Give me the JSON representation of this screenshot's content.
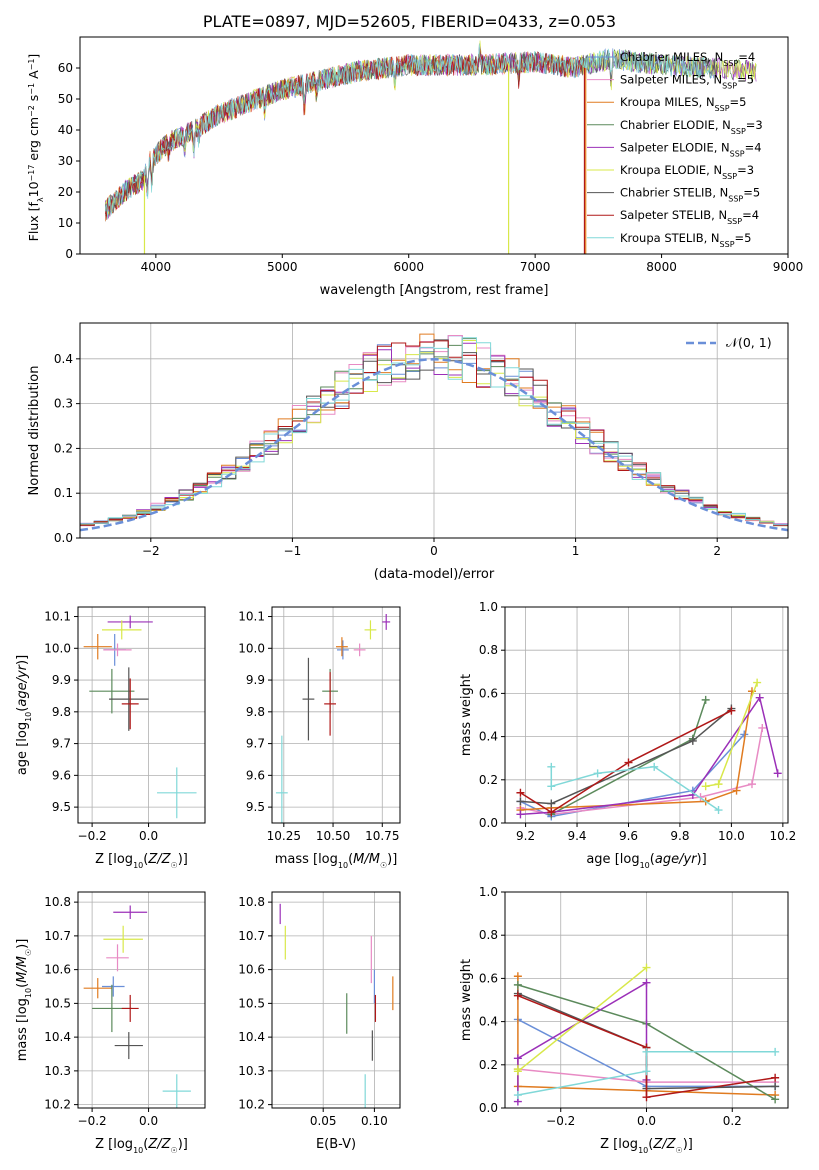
{
  "colors": {
    "chabrier_miles": "#6a8fd8",
    "salpeter_miles": "#e88bc4",
    "kroupa_miles": "#e07b20",
    "chabrier_elodie": "#5c8a5c",
    "salpeter_elodie": "#9b30b8",
    "kroupa_elodie": "#d8e84a",
    "chabrier_stelib": "#555555",
    "salpeter_stelib": "#b01818",
    "kroupa_stelib": "#80d8d8",
    "gauss": "#6a8fd8",
    "grid": "#b0b0b0"
  },
  "title": "PLATE=0897, MJD=52605, FIBERID=0433, z=0.053",
  "chart_data": [
    {
      "id": "spectrum",
      "type": "line",
      "xlabel": "wavelength [Angstrom, rest frame]",
      "ylabel": "Flux [f_λ10^-17 erg cm^-2 s^-1 A^-1]",
      "xlim": [
        3400,
        9000
      ],
      "ylim": [
        0,
        70
      ],
      "xticks": [
        "4000",
        "5000",
        "6000",
        "7000",
        "8000",
        "9000"
      ],
      "yticks": [
        "0",
        "10",
        "20",
        "30",
        "40",
        "50",
        "60"
      ],
      "legend": "top-right",
      "series": [
        {
          "name": "Chabrier MILES, N_SSP=4",
          "key": "chabrier_miles"
        },
        {
          "name": "Salpeter MILES, N_SSP=5",
          "key": "salpeter_miles"
        },
        {
          "name": "Kroupa MILES, N_SSP=5",
          "key": "kroupa_miles"
        },
        {
          "name": "Chabrier ELODIE, N_SSP=3",
          "key": "chabrier_elodie"
        },
        {
          "name": "Salpeter ELODIE, N_SSP=4",
          "key": "salpeter_elodie"
        },
        {
          "name": "Kroupa ELODIE, N_SSP=3",
          "key": "kroupa_elodie"
        },
        {
          "name": "Chabrier STELIB, N_SSP=5",
          "key": "chabrier_stelib"
        },
        {
          "name": "Salpeter STELIB, N_SSP=4",
          "key": "salpeter_stelib"
        },
        {
          "name": "Kroupa STELIB, N_SSP=5",
          "key": "kroupa_stelib"
        }
      ],
      "continuum": {
        "x": [
          3600,
          3750,
          3900,
          3950,
          4100,
          4300,
          4500,
          4800,
          5000,
          5300,
          5600,
          6000,
          6300,
          6600,
          7000,
          7300,
          7600,
          8000,
          8400,
          8700
        ],
        "y": [
          14,
          20,
          24,
          30,
          36,
          40,
          45,
          50,
          53,
          56,
          59,
          61,
          61,
          61,
          62,
          60,
          63,
          61,
          60,
          59
        ]
      },
      "drops": [
        {
          "key": "kroupa_elodie",
          "x_from": 3910,
          "x_to": 3940
        },
        {
          "key": "kroupa_elodie",
          "x_from": 6790,
          "x_to": 6830
        },
        {
          "key": "salpeter_stelib",
          "x_from": 7390,
          "x_to": 9000
        },
        {
          "key": "kroupa_miles",
          "x_from": 7400,
          "x_to": 9000
        },
        {
          "key": "salpeter_miles",
          "x_from": 7400,
          "x_to": 9000
        },
        {
          "key": "chabrier_miles",
          "x_from": 8450,
          "x_to": 8750
        },
        {
          "key": "chabrier_stelib",
          "x_from": 8450,
          "x_to": 8750
        },
        {
          "key": "kroupa_stelib",
          "x_from": 8400,
          "x_to": 8750
        }
      ]
    },
    {
      "id": "residuals",
      "type": "histogram",
      "xlabel": "(data-model)/error",
      "ylabel": "Normed distribution",
      "xlim": [
        -2.5,
        2.5
      ],
      "ylim": [
        0,
        0.48
      ],
      "xticks": [
        "−2",
        "−1",
        "0",
        "1",
        "2"
      ],
      "yticks": [
        "0.0",
        "0.1",
        "0.2",
        "0.3",
        "0.4"
      ],
      "legend": "top-right",
      "legend_label": "𝒩(0, 1)",
      "bin_width": 0.1
    },
    {
      "id": "age_vs_Z",
      "type": "scatter",
      "xlabel": "Z [log₁₀(Z/Z☉)]",
      "ylabel": "age [log₁₀(age/yr)]",
      "xlim": [
        -0.25,
        0.2
      ],
      "ylim": [
        9.45,
        10.13
      ],
      "xticks": [
        "−0.2",
        "0.0"
      ],
      "yticks": [
        "9.5",
        "9.6",
        "9.7",
        "9.8",
        "9.9",
        "10.0",
        "10.1"
      ],
      "points": [
        {
          "key": "chabrier_miles",
          "x": -0.12,
          "y": 9.995,
          "xerr": 0.04,
          "yerr": 0.05
        },
        {
          "key": "salpeter_miles",
          "x": -0.11,
          "y": 9.995,
          "xerr": 0.05,
          "yerr": 0.02
        },
        {
          "key": "kroupa_miles",
          "x": -0.18,
          "y": 10.005,
          "xerr": 0.05,
          "yerr": 0.04
        },
        {
          "key": "chabrier_elodie",
          "x": -0.13,
          "y": 9.865,
          "xerr": 0.08,
          "yerr": 0.07
        },
        {
          "key": "salpeter_elodie",
          "x": -0.065,
          "y": 10.083,
          "xerr": 0.08,
          "yerr": 0.02
        },
        {
          "key": "kroupa_elodie",
          "x": -0.095,
          "y": 10.058,
          "xerr": 0.07,
          "yerr": 0.03
        },
        {
          "key": "chabrier_stelib",
          "x": -0.07,
          "y": 9.84,
          "xerr": 0.07,
          "yerr": 0.1
        },
        {
          "key": "salpeter_stelib",
          "x": -0.065,
          "y": 9.825,
          "xerr": 0.03,
          "yerr": 0.08
        },
        {
          "key": "kroupa_stelib",
          "x": 0.1,
          "y": 9.545,
          "xerr": 0.07,
          "yerr": 0.08
        }
      ]
    },
    {
      "id": "age_vs_mass",
      "type": "scatter",
      "xlabel": "mass [log₁₀(M/M☉)]",
      "ylabel": "",
      "xlim": [
        10.19,
        10.84
      ],
      "ylim": [
        9.45,
        10.13
      ],
      "xticks": [
        "10.25",
        "10.50",
        "10.75"
      ],
      "yticks": [
        "9.5",
        "9.6",
        "9.7",
        "9.8",
        "9.9",
        "10.0",
        "10.1"
      ],
      "points": [
        {
          "key": "chabrier_miles",
          "x": 10.55,
          "y": 9.995,
          "xerr": 0.03,
          "yerr": 0.03
        },
        {
          "key": "salpeter_miles",
          "x": 10.635,
          "y": 9.995,
          "xerr": 0.03,
          "yerr": 0.02
        },
        {
          "key": "kroupa_miles",
          "x": 10.545,
          "y": 10.005,
          "xerr": 0.03,
          "yerr": 0.03
        },
        {
          "key": "chabrier_elodie",
          "x": 10.485,
          "y": 9.865,
          "xerr": 0.04,
          "yerr": 0.07
        },
        {
          "key": "salpeter_elodie",
          "x": 10.77,
          "y": 10.083,
          "xerr": 0.02,
          "yerr": 0.025
        },
        {
          "key": "kroupa_elodie",
          "x": 10.69,
          "y": 10.058,
          "xerr": 0.03,
          "yerr": 0.03
        },
        {
          "key": "chabrier_stelib",
          "x": 10.375,
          "y": 9.84,
          "xerr": 0.03,
          "yerr": 0.13
        },
        {
          "key": "salpeter_stelib",
          "x": 10.485,
          "y": 9.825,
          "xerr": 0.03,
          "yerr": 0.1
        },
        {
          "key": "kroupa_stelib",
          "x": 10.24,
          "y": 9.545,
          "xerr": 0.03,
          "yerr": 0.18
        }
      ]
    },
    {
      "id": "weight_vs_age",
      "type": "line",
      "xlabel": "age [log₁₀(age/yr)]",
      "ylabel": "mass weight",
      "xlim": [
        9.12,
        10.22
      ],
      "ylim": [
        0,
        1
      ],
      "xticks": [
        "9.2",
        "9.4",
        "9.6",
        "9.8",
        "10.0",
        "10.2"
      ],
      "yticks": [
        "0.0",
        "0.2",
        "0.4",
        "0.6",
        "0.8",
        "1.0"
      ],
      "series": [
        {
          "key": "chabrier_miles",
          "x": [
            9.18,
            9.3,
            9.85,
            10.05
          ],
          "y": [
            0.1,
            0.03,
            0.15,
            0.41
          ]
        },
        {
          "key": "salpeter_miles",
          "x": [
            9.18,
            9.3,
            9.88,
            10.08,
            10.12
          ],
          "y": [
            0.07,
            0.04,
            0.12,
            0.18,
            0.44
          ]
        },
        {
          "key": "kroupa_miles",
          "x": [
            9.18,
            9.3,
            9.9,
            10.02,
            10.08
          ],
          "y": [
            0.06,
            0.07,
            0.1,
            0.15,
            0.61
          ]
        },
        {
          "key": "chabrier_elodie",
          "x": [
            9.3,
            9.85,
            9.9
          ],
          "y": [
            0.04,
            0.39,
            0.57
          ]
        },
        {
          "key": "salpeter_elodie",
          "x": [
            9.18,
            9.3,
            9.85,
            10.11,
            10.18
          ],
          "y": [
            0.04,
            0.05,
            0.13,
            0.58,
            0.23
          ]
        },
        {
          "key": "kroupa_elodie",
          "x": [
            9.9,
            9.95,
            10.1
          ],
          "y": [
            0.17,
            0.18,
            0.65
          ]
        },
        {
          "key": "chabrier_stelib",
          "x": [
            9.18,
            9.3,
            9.85,
            10.0
          ],
          "y": [
            0.1,
            0.09,
            0.38,
            0.53
          ]
        },
        {
          "key": "salpeter_stelib",
          "x": [
            9.18,
            9.3,
            9.6,
            10.0
          ],
          "y": [
            0.14,
            0.05,
            0.28,
            0.52
          ]
        },
        {
          "key": "kroupa_stelib",
          "x": [
            9.3,
            9.3,
            9.48,
            9.7,
            9.95
          ],
          "y": [
            0.26,
            0.17,
            0.23,
            0.26,
            0.06
          ]
        }
      ]
    },
    {
      "id": "mass_vs_Z",
      "type": "scatter",
      "xlabel": "Z [log₁₀(Z/Z☉)]",
      "ylabel": "mass [log₁₀(M/M☉)]",
      "xlim": [
        -0.25,
        0.2
      ],
      "ylim": [
        10.19,
        10.83
      ],
      "xticks": [
        "−0.2",
        "0.0"
      ],
      "yticks": [
        "10.2",
        "10.3",
        "10.4",
        "10.5",
        "10.6",
        "10.7",
        "10.8"
      ],
      "points": [
        {
          "key": "chabrier_miles",
          "x": -0.125,
          "y": 10.55,
          "xerr": 0.04,
          "yerr": 0.03
        },
        {
          "key": "salpeter_miles",
          "x": -0.11,
          "y": 10.635,
          "xerr": 0.04,
          "yerr": 0.04
        },
        {
          "key": "kroupa_miles",
          "x": -0.18,
          "y": 10.545,
          "xerr": 0.05,
          "yerr": 0.03
        },
        {
          "key": "chabrier_elodie",
          "x": -0.13,
          "y": 10.485,
          "xerr": 0.07,
          "yerr": 0.07
        },
        {
          "key": "salpeter_elodie",
          "x": -0.065,
          "y": 10.77,
          "xerr": 0.06,
          "yerr": 0.02
        },
        {
          "key": "kroupa_elodie",
          "x": -0.09,
          "y": 10.69,
          "xerr": 0.07,
          "yerr": 0.04
        },
        {
          "key": "chabrier_stelib",
          "x": -0.07,
          "y": 10.375,
          "xerr": 0.05,
          "yerr": 0.04
        },
        {
          "key": "salpeter_stelib",
          "x": -0.065,
          "y": 10.485,
          "xerr": 0.03,
          "yerr": 0.04
        },
        {
          "key": "kroupa_stelib",
          "x": 0.1,
          "y": 10.24,
          "xerr": 0.05,
          "yerr": 0.05
        }
      ]
    },
    {
      "id": "mass_vs_ebv",
      "type": "scatter",
      "xlabel": "E(B-V)",
      "ylabel": "",
      "xlim": [
        0.0,
        0.125
      ],
      "ylim": [
        10.19,
        10.83
      ],
      "xticks": [
        "0.05",
        "0.10"
      ],
      "yticks": [
        "10.2",
        "10.3",
        "10.4",
        "10.5",
        "10.6",
        "10.7",
        "10.8"
      ],
      "points": [
        {
          "key": "chabrier_miles",
          "x": 0.1,
          "y": 10.55,
          "xerr": 0.0,
          "yerr": 0.05
        },
        {
          "key": "salpeter_miles",
          "x": 0.097,
          "y": 10.63,
          "xerr": 0.0,
          "yerr": 0.07
        },
        {
          "key": "kroupa_miles",
          "x": 0.118,
          "y": 10.53,
          "xerr": 0.0,
          "yerr": 0.05
        },
        {
          "key": "chabrier_elodie",
          "x": 0.073,
          "y": 10.47,
          "xerr": 0.0,
          "yerr": 0.06
        },
        {
          "key": "salpeter_elodie",
          "x": 0.008,
          "y": 10.765,
          "xerr": 0.0,
          "yerr": 0.03
        },
        {
          "key": "kroupa_elodie",
          "x": 0.013,
          "y": 10.68,
          "xerr": 0.0,
          "yerr": 0.05
        },
        {
          "key": "chabrier_stelib",
          "x": 0.098,
          "y": 10.375,
          "xerr": 0.0,
          "yerr": 0.045
        },
        {
          "key": "salpeter_stelib",
          "x": 0.101,
          "y": 10.485,
          "xerr": 0.0,
          "yerr": 0.04
        },
        {
          "key": "kroupa_stelib",
          "x": 0.091,
          "y": 10.24,
          "xerr": 0.0,
          "yerr": 0.05
        }
      ]
    },
    {
      "id": "weight_vs_Z",
      "type": "line",
      "xlabel": "Z [log₁₀(Z/Z☉)]",
      "ylabel": "mass weight",
      "xlim": [
        -0.33,
        0.33
      ],
      "ylim": [
        0,
        1
      ],
      "xticks": [
        "−0.2",
        "0.0",
        "0.2"
      ],
      "yticks": [
        "0.0",
        "0.2",
        "0.4",
        "0.6",
        "0.8",
        "1.0"
      ],
      "series": [
        {
          "key": "chabrier_miles",
          "x": [
            -0.3,
            0.0,
            0.3
          ],
          "y": [
            0.41,
            0.1,
            0.1
          ]
        },
        {
          "key": "salpeter_miles",
          "x": [
            -0.3,
            0.0,
            0.3
          ],
          "y": [
            0.18,
            0.12,
            0.12
          ]
        },
        {
          "key": "kroupa_miles",
          "x": [
            -0.3,
            -0.3,
            0.0,
            0.3
          ],
          "y": [
            0.61,
            0.1,
            0.08,
            0.06
          ]
        },
        {
          "key": "chabrier_elodie",
          "x": [
            -0.3,
            0.0,
            0.3
          ],
          "y": [
            0.57,
            0.39,
            0.04
          ]
        },
        {
          "key": "salpeter_elodie",
          "x": [
            -0.3,
            -0.3,
            0.0,
            0.0
          ],
          "y": [
            0.03,
            0.23,
            0.58,
            0.13
          ]
        },
        {
          "key": "kroupa_elodie",
          "x": [
            -0.3,
            -0.3,
            0.0
          ],
          "y": [
            0.18,
            0.17,
            0.65
          ]
        },
        {
          "key": "chabrier_stelib",
          "x": [
            -0.3,
            0.0,
            0.0,
            0.3
          ],
          "y": [
            0.53,
            0.28,
            0.09,
            0.1
          ]
        },
        {
          "key": "salpeter_stelib",
          "x": [
            -0.3,
            0.0,
            0.0,
            0.3
          ],
          "y": [
            0.52,
            0.28,
            0.05,
            0.14
          ]
        },
        {
          "key": "kroupa_stelib",
          "x": [
            -0.3,
            0.0,
            0.0,
            0.3
          ],
          "y": [
            0.06,
            0.17,
            0.26,
            0.26
          ]
        }
      ]
    }
  ]
}
